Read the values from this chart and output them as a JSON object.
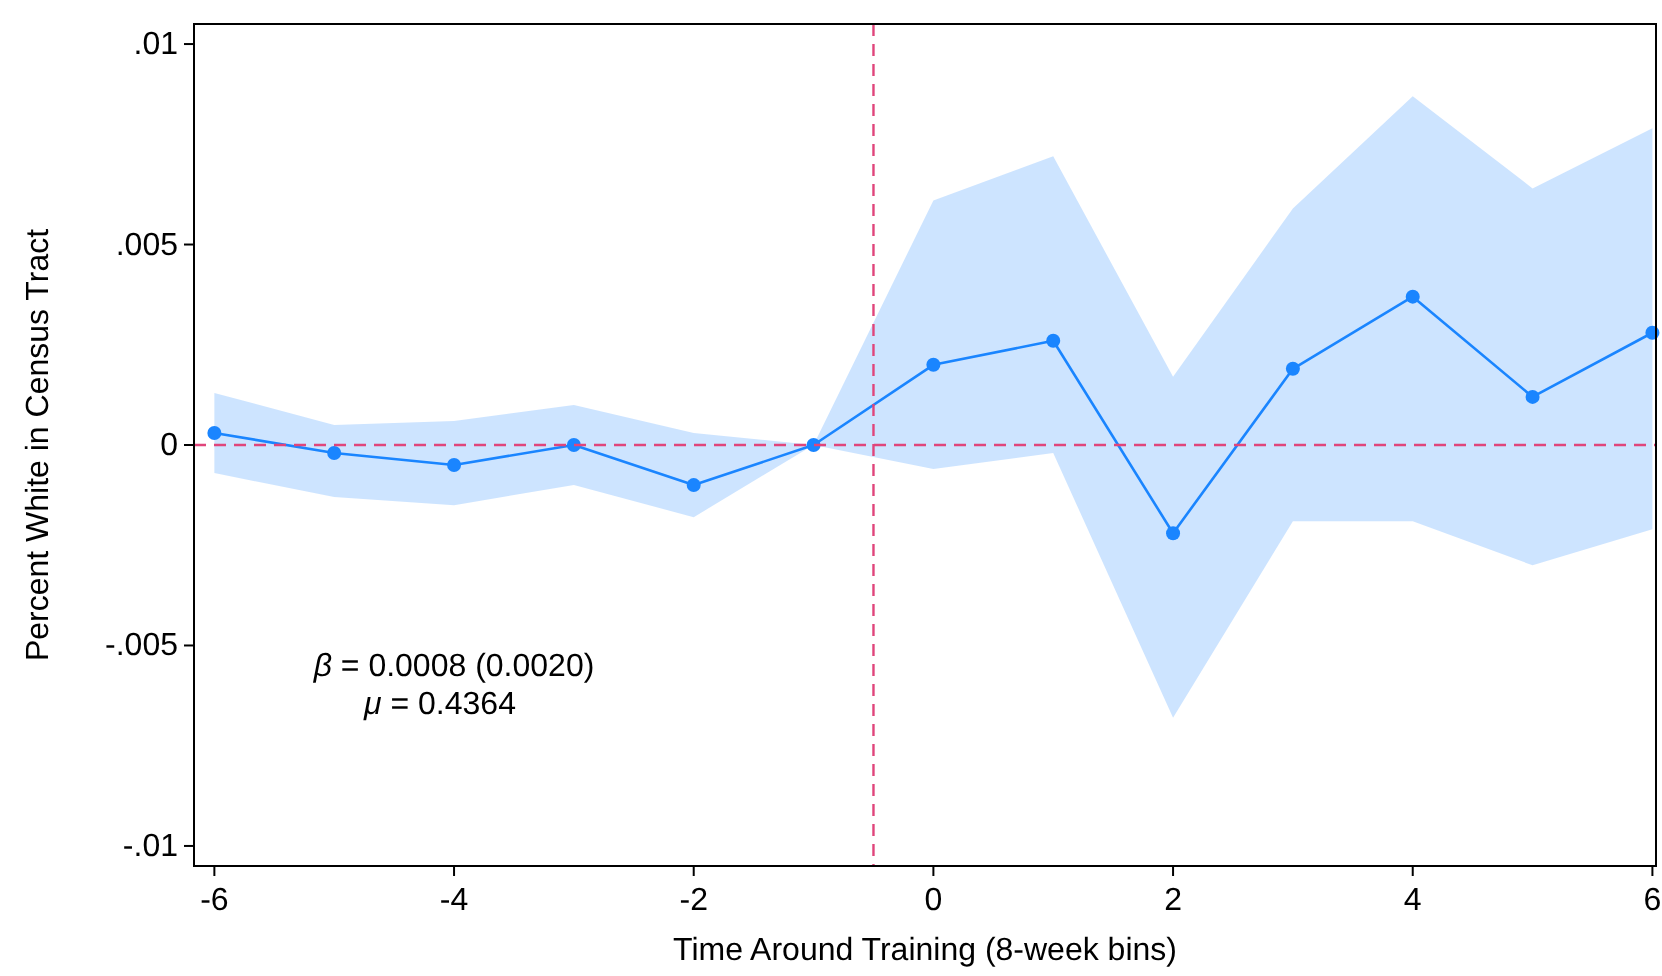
{
  "chart_data": {
    "type": "line",
    "xlabel": "Time Around Training (8-week bins)",
    "ylabel": "Percent White in Census Tract",
    "x": [
      -6,
      -5,
      -4,
      -3,
      -2,
      -1,
      0,
      1,
      2,
      3,
      4,
      5,
      6
    ],
    "series": [
      {
        "color": "#1a85ff",
        "values": [
          0.0003,
          -0.0002,
          -0.0005,
          0,
          -0.001,
          0,
          0.002,
          0.0026,
          -0.0022,
          0.0019,
          0.0037,
          0.0012,
          0.0028
        ],
        "lower": [
          -0.0007,
          -0.0013,
          -0.0015,
          -0.001,
          -0.0018,
          0,
          -0.0006,
          -0.0002,
          -0.0068,
          -0.0019,
          -0.0019,
          -0.003,
          -0.0021
        ],
        "upper": [
          0.0013,
          0.0005,
          0.0006,
          0.001,
          0.0003,
          0,
          0.0061,
          0.0072,
          0.0017,
          0.0059,
          0.0087,
          0.0064,
          0.0079
        ]
      }
    ],
    "xlim": [
      -6.17,
      6.03
    ],
    "xticks": [
      -6,
      -4,
      -2,
      0,
      2,
      4,
      6
    ],
    "ylim": [
      -0.0105,
      0.0105
    ],
    "yticks": [
      {
        "value": -0.01,
        "label": "-.01"
      },
      {
        "value": -0.005,
        "label": "-.005"
      },
      {
        "value": 0,
        "label": "0"
      },
      {
        "value": 0.005,
        "label": ".005"
      },
      {
        "value": 0.01,
        "label": ".01"
      }
    ],
    "ref_lines": [
      {
        "axis": "y",
        "value": 0,
        "color": "#e0457b",
        "line_style": "dashed"
      },
      {
        "axis": "x",
        "value": -0.5,
        "color": "#e0457b",
        "line_style": "dashed"
      }
    ],
    "annotations": [
      "β = 0.0008 (0.0020)",
      "μ = 0.4364"
    ],
    "marker": "circle",
    "line_style": "solid",
    "grid": false
  }
}
